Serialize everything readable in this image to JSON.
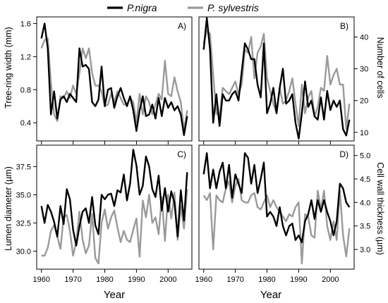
{
  "legend": {
    "placement": "top-center",
    "items": [
      {
        "label": "P.nigra",
        "color": "#000000"
      },
      {
        "label": "P. sylvestris",
        "color": "#9a9a9a"
      }
    ]
  },
  "years": [
    1960,
    1961,
    1962,
    1963,
    1964,
    1965,
    1966,
    1967,
    1968,
    1969,
    1970,
    1971,
    1972,
    1973,
    1974,
    1975,
    1976,
    1977,
    1978,
    1979,
    1980,
    1981,
    1982,
    1983,
    1984,
    1985,
    1986,
    1987,
    1988,
    1989,
    1990,
    1991,
    1992,
    1993,
    1994,
    1995,
    1996,
    1997,
    1998,
    1999,
    2000,
    2001,
    2002,
    2003,
    2004,
    2005,
    2006
  ],
  "x_ticks": [
    1960,
    1970,
    1980,
    1990,
    2000
  ],
  "chart_data": [
    {
      "type": "line",
      "panel": "A)",
      "title": "",
      "xlabel": "",
      "ylabel": "Tree-ring width (mm)",
      "y_axis_side": "left",
      "xlim": [
        1958.5,
        2007.5
      ],
      "ylim": [
        0.18,
        1.68
      ],
      "y_ticks": [
        0.4,
        0.8,
        1.2,
        1.6
      ],
      "y_tick_labels": [
        "0.4",
        "0.8",
        "1.2",
        "1.6"
      ],
      "series": [
        {
          "name": "P.nigra",
          "values": [
            1.42,
            1.6,
            1.3,
            0.5,
            0.78,
            0.45,
            0.68,
            0.72,
            0.65,
            0.75,
            0.7,
            0.65,
            1.3,
            1.08,
            1.1,
            1.05,
            0.65,
            0.6,
            0.68,
            1.08,
            0.6,
            0.8,
            0.82,
            0.58,
            0.72,
            0.82,
            0.7,
            0.6,
            0.72,
            0.55,
            0.3,
            0.55,
            0.72,
            0.48,
            0.5,
            0.62,
            0.45,
            0.7,
            0.48,
            0.7,
            0.58,
            0.65,
            0.55,
            0.6,
            0.5,
            0.25,
            0.48
          ]
        },
        {
          "name": "P. sylvestris",
          "values": [
            1.3,
            1.4,
            1.42,
            0.88,
            0.5,
            0.42,
            0.72,
            0.7,
            0.78,
            0.7,
            0.85,
            0.75,
            1.0,
            1.3,
            1.18,
            1.3,
            1.0,
            0.85,
            0.85,
            0.78,
            0.6,
            0.62,
            0.75,
            0.65,
            0.78,
            0.7,
            0.62,
            0.62,
            0.7,
            0.65,
            0.4,
            0.75,
            0.5,
            0.72,
            0.65,
            0.5,
            0.62,
            0.75,
            0.68,
            1.15,
            0.75,
            0.72,
            0.95,
            0.78,
            0.65,
            0.3,
            0.55
          ]
        }
      ]
    },
    {
      "type": "line",
      "panel": "B)",
      "title": "",
      "xlabel": "",
      "ylabel": "Number of cells",
      "y_axis_side": "right",
      "xlim": [
        1958.5,
        2007.5
      ],
      "ylim": [
        7.3,
        46.3
      ],
      "y_ticks": [
        10,
        20,
        30,
        40
      ],
      "y_tick_labels": [
        "10",
        "20",
        "30",
        "40"
      ],
      "series": [
        {
          "name": "P.nigra",
          "values": [
            36,
            46,
            36,
            13,
            22,
            12,
            22,
            20,
            20,
            22,
            23,
            20,
            29,
            38,
            36,
            33,
            33,
            25,
            21,
            38,
            16,
            19,
            24,
            16,
            24,
            30,
            19,
            20,
            22,
            13,
            8,
            16,
            26,
            18,
            20,
            15,
            14,
            21,
            14,
            23,
            17,
            20,
            18,
            20,
            11,
            9,
            14
          ]
        },
        {
          "name": "P. sylvestris",
          "values": [
            38,
            42,
            41,
            28,
            16,
            15,
            24,
            23,
            22,
            24,
            26,
            22,
            25,
            36,
            35,
            40,
            27,
            35,
            37,
            41,
            27,
            23,
            19,
            16,
            24,
            19,
            20,
            23,
            27,
            19,
            12,
            25,
            16,
            21,
            23,
            15,
            18,
            24,
            23,
            34,
            25,
            28,
            30,
            25,
            25,
            11,
            19
          ]
        }
      ]
    },
    {
      "type": "line",
      "panel": "C)",
      "title": "",
      "xlabel": "Year",
      "ylabel": "Lumen diameter (µm)",
      "y_axis_side": "left",
      "xlim": [
        1958.5,
        2007.5
      ],
      "ylim": [
        28.4,
        39.4
      ],
      "y_ticks": [
        30.0,
        32.5,
        35.0,
        37.5
      ],
      "y_tick_labels": [
        "30.0",
        "32.5",
        "35.0",
        "37.5"
      ],
      "series": [
        {
          "name": "P.nigra",
          "values": [
            34.0,
            32.5,
            34.1,
            33.5,
            32.6,
            31.3,
            34.0,
            32.4,
            35.5,
            34.6,
            31.9,
            30.5,
            32.2,
            33.5,
            33.8,
            32.5,
            34.8,
            32.3,
            31.5,
            35.0,
            34.6,
            35.0,
            35.1,
            34.0,
            35.4,
            35.2,
            36.8,
            34.5,
            36.0,
            39.0,
            37.6,
            35.0,
            35.8,
            38.4,
            37.5,
            35.5,
            34.8,
            36.7,
            33.6,
            35.6,
            33.5,
            35.3,
            34.3,
            31.3,
            35.4,
            32.7,
            37.0
          ]
        },
        {
          "name": "P. sylvestris",
          "values": [
            29.6,
            29.6,
            30.3,
            31.8,
            32.3,
            31.3,
            30.2,
            33.0,
            33.2,
            31.8,
            29.6,
            30.8,
            33.5,
            31.0,
            29.8,
            30.5,
            33.3,
            29.4,
            28.9,
            32.5,
            33.7,
            32.0,
            33.0,
            33.6,
            32.1,
            30.8,
            31.8,
            31.0,
            30.8,
            31.9,
            32.9,
            29.5,
            34.5,
            33.0,
            35.0,
            32.5,
            33.0,
            31.5,
            34.8,
            30.9,
            35.0,
            32.9,
            35.2,
            31.0,
            34.0,
            32.0,
            35.5
          ]
        }
      ]
    },
    {
      "type": "line",
      "panel": "D)",
      "title": "",
      "xlabel": "Year",
      "ylabel": "Cell wall thickness (µm)",
      "y_axis_side": "right",
      "xlim": [
        1958.5,
        2007.5
      ],
      "ylim": [
        2.58,
        5.22
      ],
      "y_ticks": [
        3.0,
        3.5,
        4.0,
        4.5,
        5.0
      ],
      "y_tick_labels": [
        "3.0",
        "3.5",
        "4.0",
        "4.5",
        "5.0"
      ],
      "series": [
        {
          "name": "P.nigra",
          "values": [
            4.6,
            5.05,
            4.3,
            4.7,
            4.3,
            4.65,
            4.85,
            4.3,
            4.8,
            4.1,
            4.6,
            4.4,
            4.2,
            5.05,
            4.95,
            4.4,
            4.8,
            4.2,
            4.5,
            4.85,
            3.7,
            3.8,
            3.7,
            3.5,
            3.9,
            3.5,
            3.3,
            3.5,
            3.55,
            3.2,
            3.3,
            3.15,
            3.6,
            3.75,
            4.05,
            3.65,
            4.05,
            3.8,
            4.05,
            3.8,
            3.6,
            3.3,
            3.6,
            4.4,
            4.3,
            4.0,
            3.9
          ]
        },
        {
          "name": "P. sylvestris",
          "values": [
            4.15,
            4.05,
            4.2,
            3.0,
            4.15,
            4.05,
            4.0,
            4.3,
            4.45,
            4.0,
            4.35,
            4.5,
            4.05,
            4.0,
            4.0,
            4.15,
            4.2,
            3.9,
            3.85,
            4.0,
            4.15,
            3.9,
            4.05,
            3.9,
            3.8,
            3.7,
            3.6,
            3.75,
            3.7,
            3.9,
            4.0,
            2.7,
            3.75,
            3.7,
            3.3,
            3.25,
            4.25,
            3.85,
            4.25,
            3.5,
            3.2,
            3.6,
            3.2,
            4.25,
            3.3,
            2.85,
            3.45
          ]
        }
      ]
    }
  ]
}
